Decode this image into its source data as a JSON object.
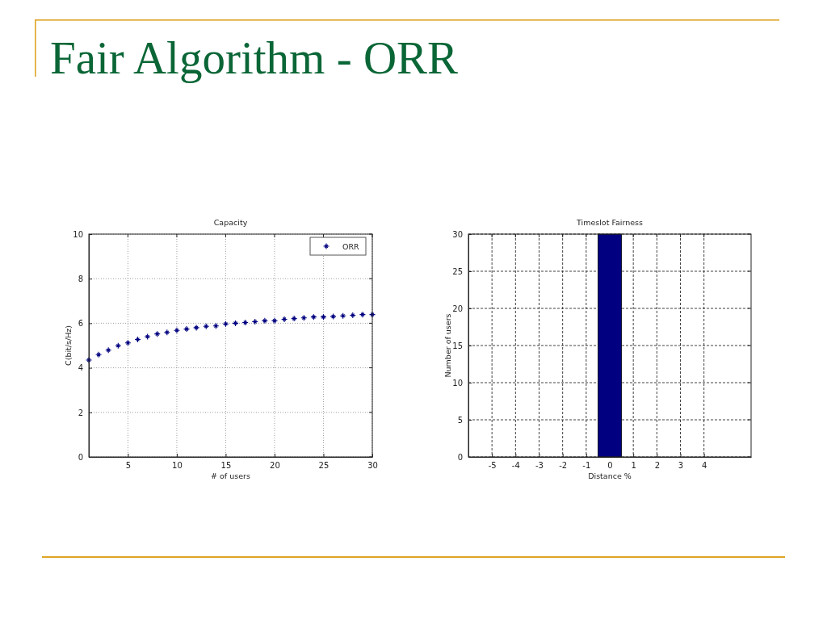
{
  "chart_data": [
    {
      "type": "other",
      "title": "Fair Algorithm - ORR"
    },
    {
      "type": "scatter",
      "title": "Capacity",
      "xlabel": "# of users",
      "ylabel": "C(bit/s/Hz)",
      "x": [
        1,
        2,
        3,
        4,
        5,
        6,
        7,
        8,
        9,
        10,
        11,
        12,
        13,
        14,
        15,
        16,
        17,
        18,
        19,
        20,
        21,
        22,
        23,
        24,
        25,
        26,
        27,
        28,
        29,
        30
      ],
      "series": [
        {
          "name": "ORR",
          "color": "#000080",
          "values": [
            4.35,
            4.59,
            4.79,
            4.99,
            5.12,
            5.27,
            5.4,
            5.52,
            5.59,
            5.68,
            5.74,
            5.8,
            5.86,
            5.88,
            5.97,
            6.0,
            6.03,
            6.07,
            6.11,
            6.11,
            6.18,
            6.21,
            6.24,
            6.28,
            6.28,
            6.3,
            6.33,
            6.36,
            6.39,
            6.39
          ]
        }
      ],
      "xlim": [
        1,
        30
      ],
      "xticks": [
        5,
        10,
        15,
        20,
        25,
        30
      ],
      "ylim": [
        0,
        10
      ],
      "yticks": [
        0,
        2,
        4,
        6,
        8,
        10
      ],
      "grid": true,
      "legend": "top right",
      "marker": "cross"
    },
    {
      "type": "histogram",
      "title": "Timeslot Fairness",
      "xlabel": "Distance %",
      "ylabel": "Number of users",
      "bins": [
        -0.5,
        0.5
      ],
      "values": [
        30
      ],
      "color": "#000080",
      "xlim": [
        -6,
        6
      ],
      "xticks": [
        -5,
        -4,
        -3,
        -2,
        -1,
        0,
        1,
        2,
        3,
        4
      ],
      "ylim": [
        0,
        30
      ],
      "yticks": [
        0,
        5,
        10,
        15,
        20,
        25,
        30
      ],
      "grid": true
    }
  ]
}
